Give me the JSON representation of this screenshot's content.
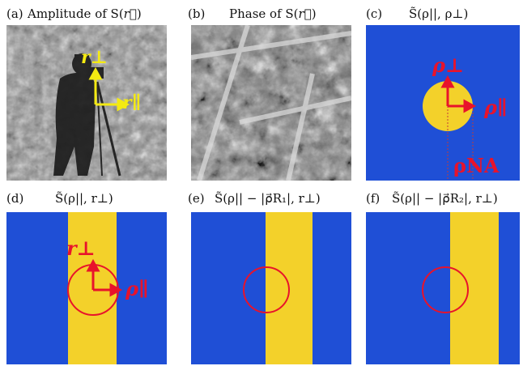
{
  "panels": [
    {
      "id": "a",
      "label": "(a)",
      "title_prefix": "Amplitude of S(",
      "title_vec": "r⃗",
      "title_suffix": ")"
    },
    {
      "id": "b",
      "label": "(b)",
      "title_prefix": "Phase of S(",
      "title_vec": "r⃗",
      "title_suffix": ")"
    },
    {
      "id": "c",
      "label": "(c)",
      "title": "S̃(ρ||, ρ⊥)"
    },
    {
      "id": "d",
      "label": "(d)",
      "title": "S̃(ρ||, r⊥)"
    },
    {
      "id": "e",
      "label": "(e)",
      "title": "S̃(ρ|| − |ρ⃗R₁|, r⊥)"
    },
    {
      "id": "f",
      "label": "(f)",
      "title": "S̃(ρ|| − |ρ⃗R₂|, r⊥)"
    }
  ],
  "annotations": {
    "a_r_perp": "r⊥",
    "a_r_par": "r∥",
    "c_rho_perp": "ρ⊥",
    "c_rho_par": "ρ∥",
    "c_rho_na": "ρNA",
    "d_r_perp": "r⊥",
    "d_rho_par": "ρ∥"
  },
  "colors": {
    "spectrum_blue": "#1f4fd6",
    "spectrum_yellow": "#f3d12a",
    "arrow_red": "#e8132b",
    "arrow_yellow": "#f4ea12"
  }
}
